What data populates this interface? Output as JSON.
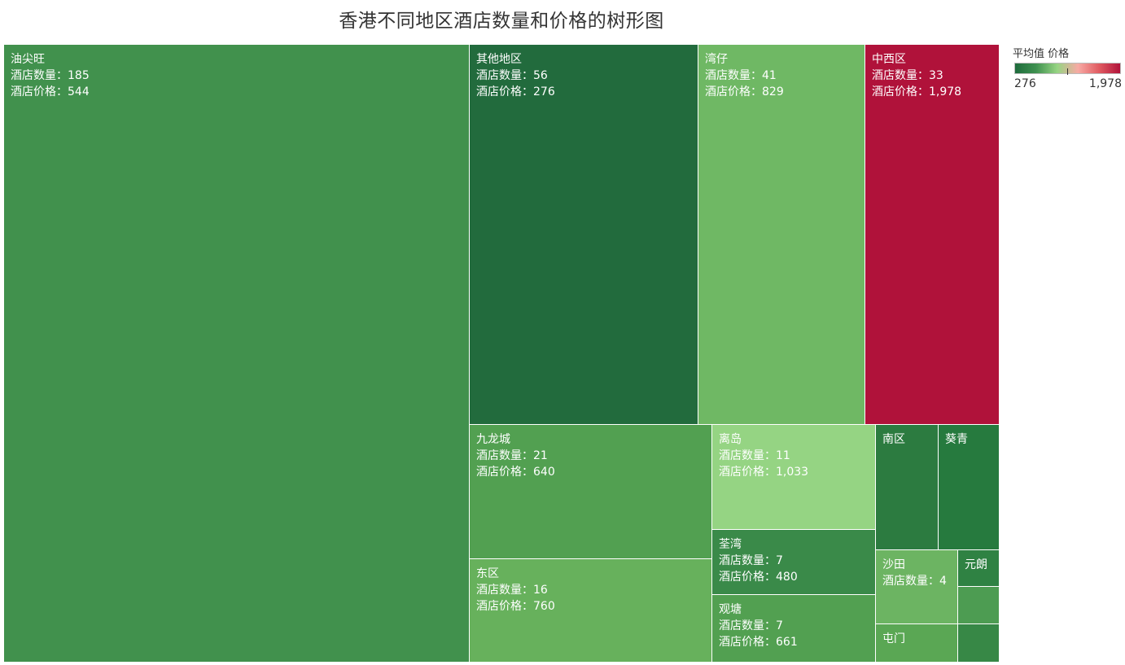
{
  "chart_data": {
    "type": "treemap",
    "title": "香港不同地区酒店数量和价格的树形图",
    "size_measure_label": "酒店数量",
    "color_measure_label": "酒店价格",
    "legend": {
      "title": "平均值 价格",
      "min_label": "276",
      "max_label": "1,978",
      "min": 276,
      "max": 1978,
      "colors": [
        "#1e6b3c",
        "#3f9150",
        "#96d483",
        "#f7aaa4",
        "#e05b61",
        "#b0123a"
      ],
      "placement": "right"
    },
    "nodes": [
      {
        "name": "油尖旺",
        "count": 185,
        "price": 544,
        "count_text": "185",
        "price_text": "544",
        "color": "#41914d",
        "show_count": true,
        "show_price": true
      },
      {
        "name": "其他地区",
        "count": 56,
        "price": 276,
        "count_text": "56",
        "price_text": "276",
        "color": "#226b3d",
        "show_count": true,
        "show_price": true
      },
      {
        "name": "湾仔",
        "count": 41,
        "price": 829,
        "count_text": "41",
        "price_text": "829",
        "color": "#6fb864",
        "show_count": true,
        "show_price": true
      },
      {
        "name": "中西区",
        "count": 33,
        "price": 1978,
        "count_text": "33",
        "price_text": "1,978",
        "color": "#b0123a",
        "show_count": true,
        "show_price": true
      },
      {
        "name": "九龙城",
        "count": 21,
        "price": 640,
        "count_text": "21",
        "price_text": "640",
        "color": "#52a051",
        "show_count": true,
        "show_price": true
      },
      {
        "name": "东区",
        "count": 16,
        "price": 760,
        "count_text": "16",
        "price_text": "760",
        "color": "#67b15c",
        "show_count": true,
        "show_price": true
      },
      {
        "name": "离岛",
        "count": 11,
        "price": 1033,
        "count_text": "11",
        "price_text": "1,033",
        "color": "#95d483",
        "show_count": true,
        "show_price": true
      },
      {
        "name": "荃湾",
        "count": 7,
        "price": 480,
        "count_text": "7",
        "price_text": "480",
        "color": "#3a8a49",
        "show_count": true,
        "show_price": true
      },
      {
        "name": "观塘",
        "count": 7,
        "price": 661,
        "count_text": "7",
        "price_text": "661",
        "color": "#52a051",
        "show_count": true,
        "show_price": true
      },
      {
        "name": "南区",
        "count": null,
        "price": null,
        "count_text": "",
        "price_text": "",
        "color": "#2c7b40",
        "show_count": false,
        "show_price": false
      },
      {
        "name": "葵青",
        "count": null,
        "price": null,
        "count_text": "",
        "price_text": "",
        "color": "#267a3e",
        "show_count": false,
        "show_price": false
      },
      {
        "name": "沙田",
        "count": 4,
        "price": null,
        "count_text": "4",
        "price_text": "",
        "color": "#6cb462",
        "show_count": true,
        "show_price": false
      },
      {
        "name": "元朗",
        "count": null,
        "price": null,
        "count_text": "",
        "price_text": "",
        "color": "#2f8243",
        "show_count": false,
        "show_price": false
      },
      {
        "name": "",
        "count": null,
        "price": null,
        "count_text": "",
        "price_text": "",
        "color": "#4d9c52",
        "show_count": false,
        "show_price": false
      },
      {
        "name": "屯门",
        "count": null,
        "price": null,
        "count_text": "",
        "price_text": "",
        "color": "#5aa754",
        "show_count": false,
        "show_price": false
      },
      {
        "name": "",
        "count": null,
        "price": null,
        "count_text": "",
        "price_text": "",
        "color": "#378846",
        "show_count": false,
        "show_price": false
      }
    ]
  }
}
